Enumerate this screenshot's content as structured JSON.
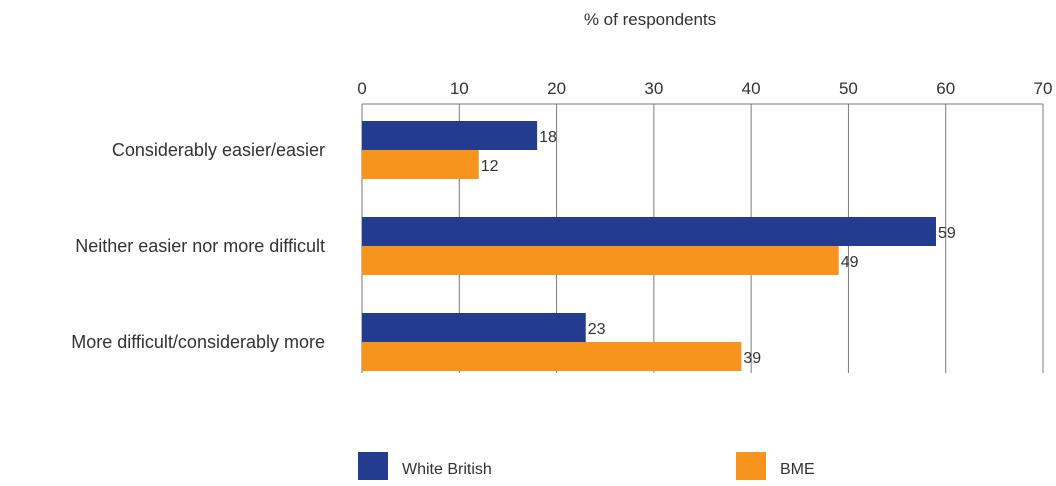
{
  "chart_data": {
    "type": "bar",
    "orientation": "horizontal",
    "title": "% of respondents",
    "xlim": [
      0,
      70
    ],
    "x_ticks": [
      "0",
      "10",
      "20",
      "30",
      "40",
      "50",
      "60",
      "70"
    ],
    "x_tick_values": [
      0,
      10,
      20,
      30,
      40,
      50,
      60,
      70
    ],
    "categories": [
      "Considerably easier/easier",
      "Neither easier nor more difficult",
      "More difficult/considerably more"
    ],
    "series": [
      {
        "name": "White British",
        "color": "#243C8F",
        "values": [
          18,
          59,
          23
        ]
      },
      {
        "name": "BME",
        "color": "#F7941D",
        "values": [
          12,
          49,
          39
        ]
      }
    ],
    "grid": true,
    "legend_position": "bottom",
    "axis_position": "top"
  }
}
